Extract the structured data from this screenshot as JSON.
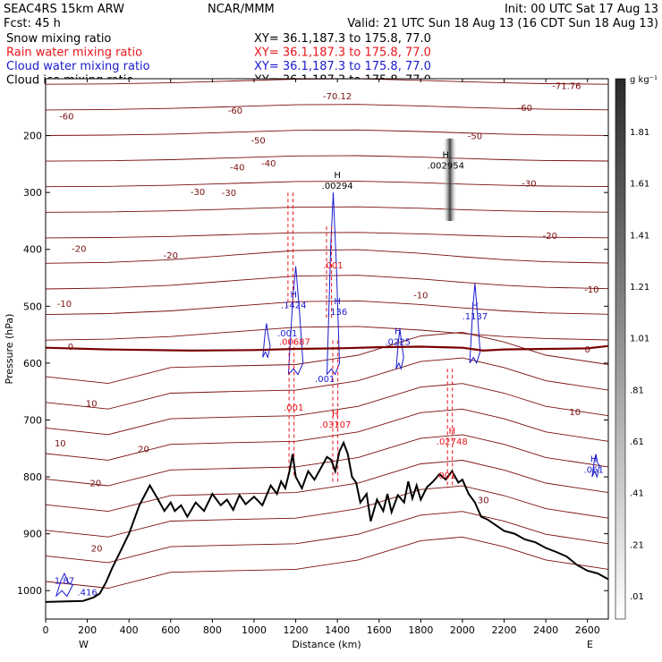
{
  "header": {
    "model": "SEAC4RS 15km ARW",
    "forecast": "Fcst:    45 h",
    "center": "NCAR/MMM",
    "init": "Init: 00 UTC Sat 17 Aug 13",
    "valid": "Valid: 21 UTC Sun 18 Aug 13 (16 CDT Sun 18 Aug 13)"
  },
  "legend": [
    {
      "name": "Snow mixing ratio",
      "xy": "XY=  36.1,187.3 to 175.8, 77.0",
      "color": "#000000"
    },
    {
      "name": "Rain water mixing ratio",
      "xy": "XY=  36.1,187.3 to 175.8, 77.0",
      "color": "#e8141c"
    },
    {
      "name": "Cloud water mixing ratio",
      "xy": "XY=  36.1,187.3 to 175.8, 77.0",
      "color": "#1a1acc"
    },
    {
      "name": "Cloud ice mixing ratio",
      "xy": "XY=  36.1,187.3 to 175.8, 77.0",
      "color": "#000000"
    }
  ],
  "colors": {
    "temperature": "#7a0e0e",
    "freezing": "#7a0000",
    "rain": "#e8141c",
    "cloud": "#1a1acc",
    "terrain": "#000000"
  },
  "chart_data": {
    "type": "cross-section",
    "xlabel": "Distance (km)",
    "ylabel": "Pressure (hPa)",
    "xlim": [
      0,
      2700
    ],
    "ylim": [
      1050,
      100
    ],
    "x_ticks": [
      0,
      200,
      400,
      600,
      800,
      1000,
      1200,
      1400,
      1600,
      1800,
      2000,
      2200,
      2400,
      2600
    ],
    "y_ticks": [
      200,
      300,
      400,
      500,
      600,
      700,
      800,
      900,
      1000
    ],
    "x_end_labels": {
      "left": "W",
      "right": "E"
    },
    "colorbar": {
      "unit": "g kg⁻¹",
      "labels": [
        ".01",
        ".21",
        ".41",
        ".61",
        ".81",
        "1.01",
        "1.21",
        "1.41",
        "1.61",
        "1.81"
      ]
    },
    "isotherm_labels": [
      {
        "t": "-70.12",
        "x": 1400,
        "p": 130
      },
      {
        "t": "-71.76",
        "x": 2500,
        "p": 112
      },
      {
        "t": "-60",
        "x": 100,
        "p": 165
      },
      {
        "t": "-60",
        "x": 910,
        "p": 155
      },
      {
        "t": "-60",
        "x": 2300,
        "p": 150
      },
      {
        "t": "-50",
        "x": 1020,
        "p": 208
      },
      {
        "t": "-50",
        "x": 2060,
        "p": 200
      },
      {
        "t": "-40",
        "x": 920,
        "p": 255
      },
      {
        "t": "-40",
        "x": 1070,
        "p": 248
      },
      {
        "t": "-30",
        "x": 730,
        "p": 298
      },
      {
        "t": "-30",
        "x": 880,
        "p": 300
      },
      {
        "t": "-30",
        "x": 2320,
        "p": 283
      },
      {
        "t": "-20",
        "x": 160,
        "p": 398
      },
      {
        "t": "-20",
        "x": 600,
        "p": 410
      },
      {
        "t": "-20",
        "x": 2420,
        "p": 375
      },
      {
        "t": "-10",
        "x": 90,
        "p": 495
      },
      {
        "t": "-10",
        "x": 1800,
        "p": 480
      },
      {
        "t": "-10",
        "x": 2620,
        "p": 470
      },
      {
        "t": "0",
        "x": 120,
        "p": 570
      },
      {
        "t": "0",
        "x": 2600,
        "p": 575
      },
      {
        "t": "10",
        "x": 220,
        "p": 670
      },
      {
        "t": "10",
        "x": 70,
        "p": 740
      },
      {
        "t": "10",
        "x": 2540,
        "p": 685
      },
      {
        "t": "20",
        "x": 470,
        "p": 750
      },
      {
        "t": "20",
        "x": 240,
        "p": 810
      },
      {
        "t": "20",
        "x": 245,
        "p": 925
      },
      {
        "t": "30",
        "x": 2100,
        "p": 840
      }
    ],
    "maxima_labels": [
      {
        "mark": "H",
        "value": ".00294",
        "x": 1400,
        "p": 290,
        "series": "snow"
      },
      {
        "mark": "H",
        "value": ".002954",
        "x": 1920,
        "p": 255,
        "series": "snow"
      },
      {
        "mark": "H",
        "value": ".1424",
        "x": 1190,
        "p": 500,
        "series": "cloud"
      },
      {
        "mark": "H",
        "value": ".136",
        "x": 1400,
        "p": 512,
        "series": "cloud"
      },
      {
        "mark": "H",
        "value": ".0225",
        "x": 1690,
        "p": 565,
        "series": "cloud"
      },
      {
        "mark": "H",
        "value": ".1137",
        "x": 2060,
        "p": 520,
        "series": "cloud"
      },
      {
        "mark": "H",
        "value": ".061",
        "x": 2630,
        "p": 790,
        "series": "cloud"
      },
      {
        "mark": "",
        "value": ".00687",
        "x": 1195,
        "p": 565,
        "series": "rain"
      },
      {
        "mark": "H",
        "value": ".03107",
        "x": 1390,
        "p": 710,
        "series": "rain"
      },
      {
        "mark": "H",
        "value": ".02748",
        "x": 1950,
        "p": 740,
        "series": "rain"
      },
      {
        "mark": "",
        "value": ".001",
        "x": 1190,
        "p": 680,
        "series": "rain"
      },
      {
        "mark": "",
        "value": ".001",
        "x": 1380,
        "p": 430,
        "series": "rain"
      },
      {
        "mark": "",
        "value": ".001",
        "x": 1920,
        "p": 800,
        "series": "rain"
      },
      {
        "mark": "",
        "value": ".001",
        "x": 1160,
        "p": 550,
        "series": "cloud"
      },
      {
        "mark": "",
        "value": ".001",
        "x": 1340,
        "p": 630,
        "series": "cloud"
      },
      {
        "mark": "",
        "value": "1.87",
        "x": 90,
        "p": 985,
        "series": "cloud"
      },
      {
        "mark": "",
        "value": ".416",
        "x": 200,
        "p": 1005,
        "series": "cloud"
      }
    ],
    "terrain": {
      "x": [
        0,
        180,
        230,
        260,
        290,
        320,
        360,
        400,
        450,
        500,
        540,
        570,
        600,
        620,
        650,
        680,
        720,
        760,
        800,
        840,
        870,
        900,
        930,
        960,
        1000,
        1040,
        1080,
        1110,
        1130,
        1150,
        1170,
        1185,
        1200,
        1230,
        1260,
        1290,
        1320,
        1350,
        1370,
        1390,
        1410,
        1430,
        1450,
        1470,
        1490,
        1510,
        1540,
        1560,
        1590,
        1620,
        1640,
        1660,
        1690,
        1720,
        1740,
        1760,
        1780,
        1800,
        1830,
        1860,
        1890,
        1920,
        1950,
        1980,
        2000,
        2030,
        2060,
        2090,
        2120,
        2160,
        2200,
        2250,
        2300,
        2350,
        2400,
        2450,
        2500,
        2550,
        2600,
        2650,
        2700
      ],
      "p": [
        1020,
        1018,
        1012,
        1005,
        985,
        960,
        930,
        900,
        850,
        815,
        840,
        860,
        845,
        860,
        850,
        870,
        845,
        860,
        830,
        850,
        840,
        858,
        832,
        848,
        835,
        850,
        815,
        830,
        808,
        820,
        790,
        760,
        800,
        820,
        790,
        805,
        785,
        765,
        770,
        790,
        755,
        740,
        760,
        800,
        810,
        845,
        830,
        878,
        840,
        860,
        830,
        862,
        832,
        845,
        808,
        838,
        815,
        840,
        818,
        808,
        795,
        805,
        790,
        810,
        805,
        830,
        845,
        870,
        875,
        885,
        895,
        900,
        910,
        915,
        925,
        932,
        940,
        955,
        965,
        970,
        980
      ]
    },
    "freezing_level": {
      "x": [
        0,
        300,
        700,
        1000,
        1200,
        1400,
        1600,
        1800,
        2000,
        2100,
        2200,
        2400,
        2600,
        2700
      ],
      "p": [
        573,
        576,
        578,
        577,
        575,
        574,
        572,
        571,
        573,
        578,
        576,
        575,
        574,
        570
      ]
    }
  }
}
